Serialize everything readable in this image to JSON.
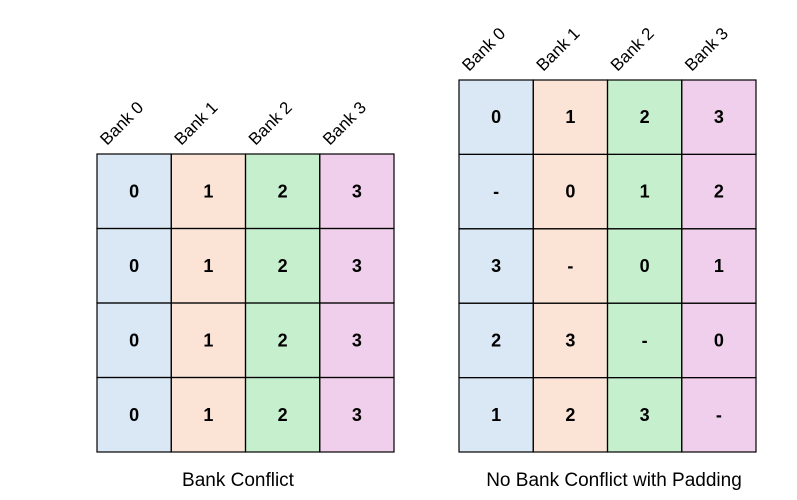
{
  "colors": {
    "bank0": "#dae8f5",
    "bank1": "#fbe3d6",
    "bank2": "#c6efce",
    "bank3": "#f0cfec"
  },
  "panels": [
    {
      "caption": "Bank Conflict",
      "headers": [
        "Bank 0",
        "Bank 1",
        "Bank 2",
        "Bank 3"
      ],
      "rows": [
        [
          "0",
          "1",
          "2",
          "3"
        ],
        [
          "0",
          "1",
          "2",
          "3"
        ],
        [
          "0",
          "1",
          "2",
          "3"
        ],
        [
          "0",
          "1",
          "2",
          "3"
        ]
      ]
    },
    {
      "caption": "No Bank Conflict with Padding",
      "headers": [
        "Bank 0",
        "Bank 1",
        "Bank 2",
        "Bank 3"
      ],
      "rows": [
        [
          "0",
          "1",
          "2",
          "3"
        ],
        [
          "-",
          "0",
          "1",
          "2"
        ],
        [
          "3",
          "-",
          "0",
          "1"
        ],
        [
          "2",
          "3",
          "-",
          "0"
        ],
        [
          "1",
          "2",
          "3",
          "-"
        ]
      ]
    }
  ]
}
